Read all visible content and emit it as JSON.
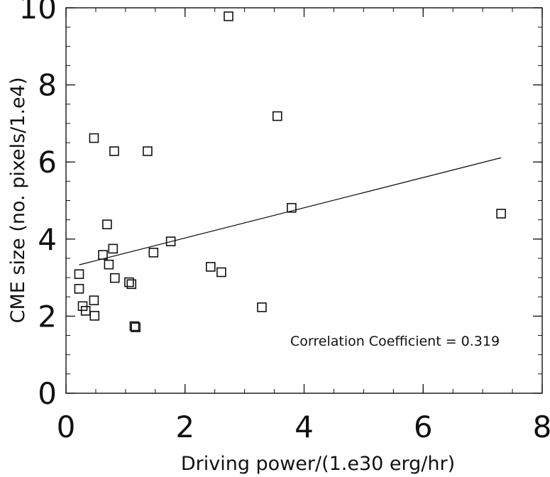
{
  "chart_data": {
    "type": "scatter",
    "xlabel": "Driving power/(1.e30 erg/hr)",
    "ylabel": "CME size (no. pixels/1.e4)",
    "xlim": [
      0,
      8
    ],
    "ylim": [
      0,
      10
    ],
    "xticks": [
      0,
      2,
      4,
      6,
      8
    ],
    "yticks": [
      0,
      2,
      4,
      6,
      8,
      10
    ],
    "x_minor_step": 0.5,
    "y_minor_step": 0.5,
    "grid": false,
    "marker": "open-square",
    "points": [
      {
        "x": 0.22,
        "y": 3.09
      },
      {
        "x": 0.22,
        "y": 2.71
      },
      {
        "x": 0.28,
        "y": 2.26
      },
      {
        "x": 0.33,
        "y": 2.14
      },
      {
        "x": 0.47,
        "y": 6.62
      },
      {
        "x": 0.47,
        "y": 2.41
      },
      {
        "x": 0.48,
        "y": 2.01
      },
      {
        "x": 0.62,
        "y": 3.59
      },
      {
        "x": 0.69,
        "y": 4.38
      },
      {
        "x": 0.72,
        "y": 3.34
      },
      {
        "x": 0.79,
        "y": 3.75
      },
      {
        "x": 0.81,
        "y": 6.28
      },
      {
        "x": 0.82,
        "y": 2.99
      },
      {
        "x": 1.06,
        "y": 2.88
      },
      {
        "x": 1.1,
        "y": 2.83
      },
      {
        "x": 1.15,
        "y": 1.74
      },
      {
        "x": 1.17,
        "y": 1.71
      },
      {
        "x": 1.37,
        "y": 6.28
      },
      {
        "x": 1.47,
        "y": 3.65
      },
      {
        "x": 1.76,
        "y": 3.94
      },
      {
        "x": 2.43,
        "y": 3.28
      },
      {
        "x": 2.61,
        "y": 3.14
      },
      {
        "x": 2.73,
        "y": 9.78
      },
      {
        "x": 3.29,
        "y": 2.23
      },
      {
        "x": 3.55,
        "y": 7.19
      },
      {
        "x": 3.79,
        "y": 4.81
      },
      {
        "x": 7.31,
        "y": 4.66
      }
    ],
    "fit_line": {
      "x": [
        0.22,
        7.31
      ],
      "y": [
        3.33,
        6.11
      ]
    },
    "annotation": "Correlation Coefficient = 0.319"
  },
  "colors": {
    "axis": "#111111",
    "marker_stroke": "#111111",
    "fit_line": "#111111",
    "background": "#ffffff"
  }
}
